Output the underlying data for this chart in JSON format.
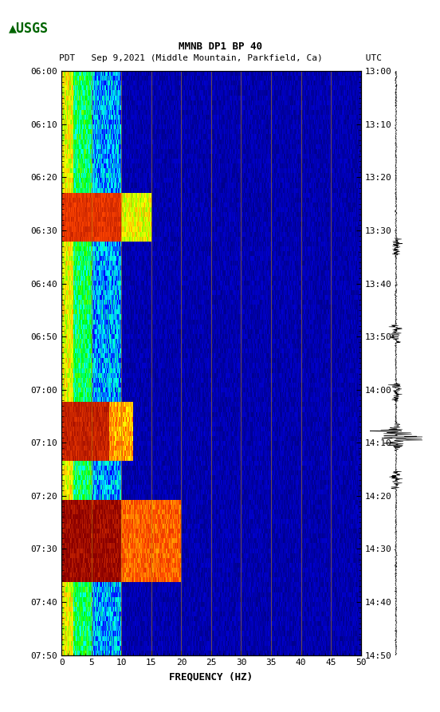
{
  "title_line1": "MMNB DP1 BP 40",
  "title_line2": "PDT   Sep 9,2021 (Middle Mountain, Parkfield, Ca)        UTC",
  "xlabel": "FREQUENCY (HZ)",
  "left_yticks": [
    "06:00",
    "06:10",
    "06:20",
    "06:30",
    "06:40",
    "06:50",
    "07:00",
    "07:10",
    "07:20",
    "07:30",
    "07:40",
    "07:50"
  ],
  "right_yticks": [
    "13:00",
    "13:10",
    "13:20",
    "13:30",
    "13:40",
    "13:50",
    "14:00",
    "14:10",
    "14:20",
    "14:30",
    "14:40",
    "14:50"
  ],
  "xticks": [
    0,
    5,
    10,
    15,
    20,
    25,
    30,
    35,
    40,
    45,
    50
  ],
  "xgrid_positions": [
    5,
    10,
    15,
    20,
    25,
    30,
    35,
    40,
    45
  ],
  "freq_max": 50,
  "time_steps": 120,
  "freq_steps": 500,
  "background_color": "#ffffff",
  "spectrogram_bg": "#00008B",
  "fig_width": 5.52,
  "fig_height": 8.93
}
